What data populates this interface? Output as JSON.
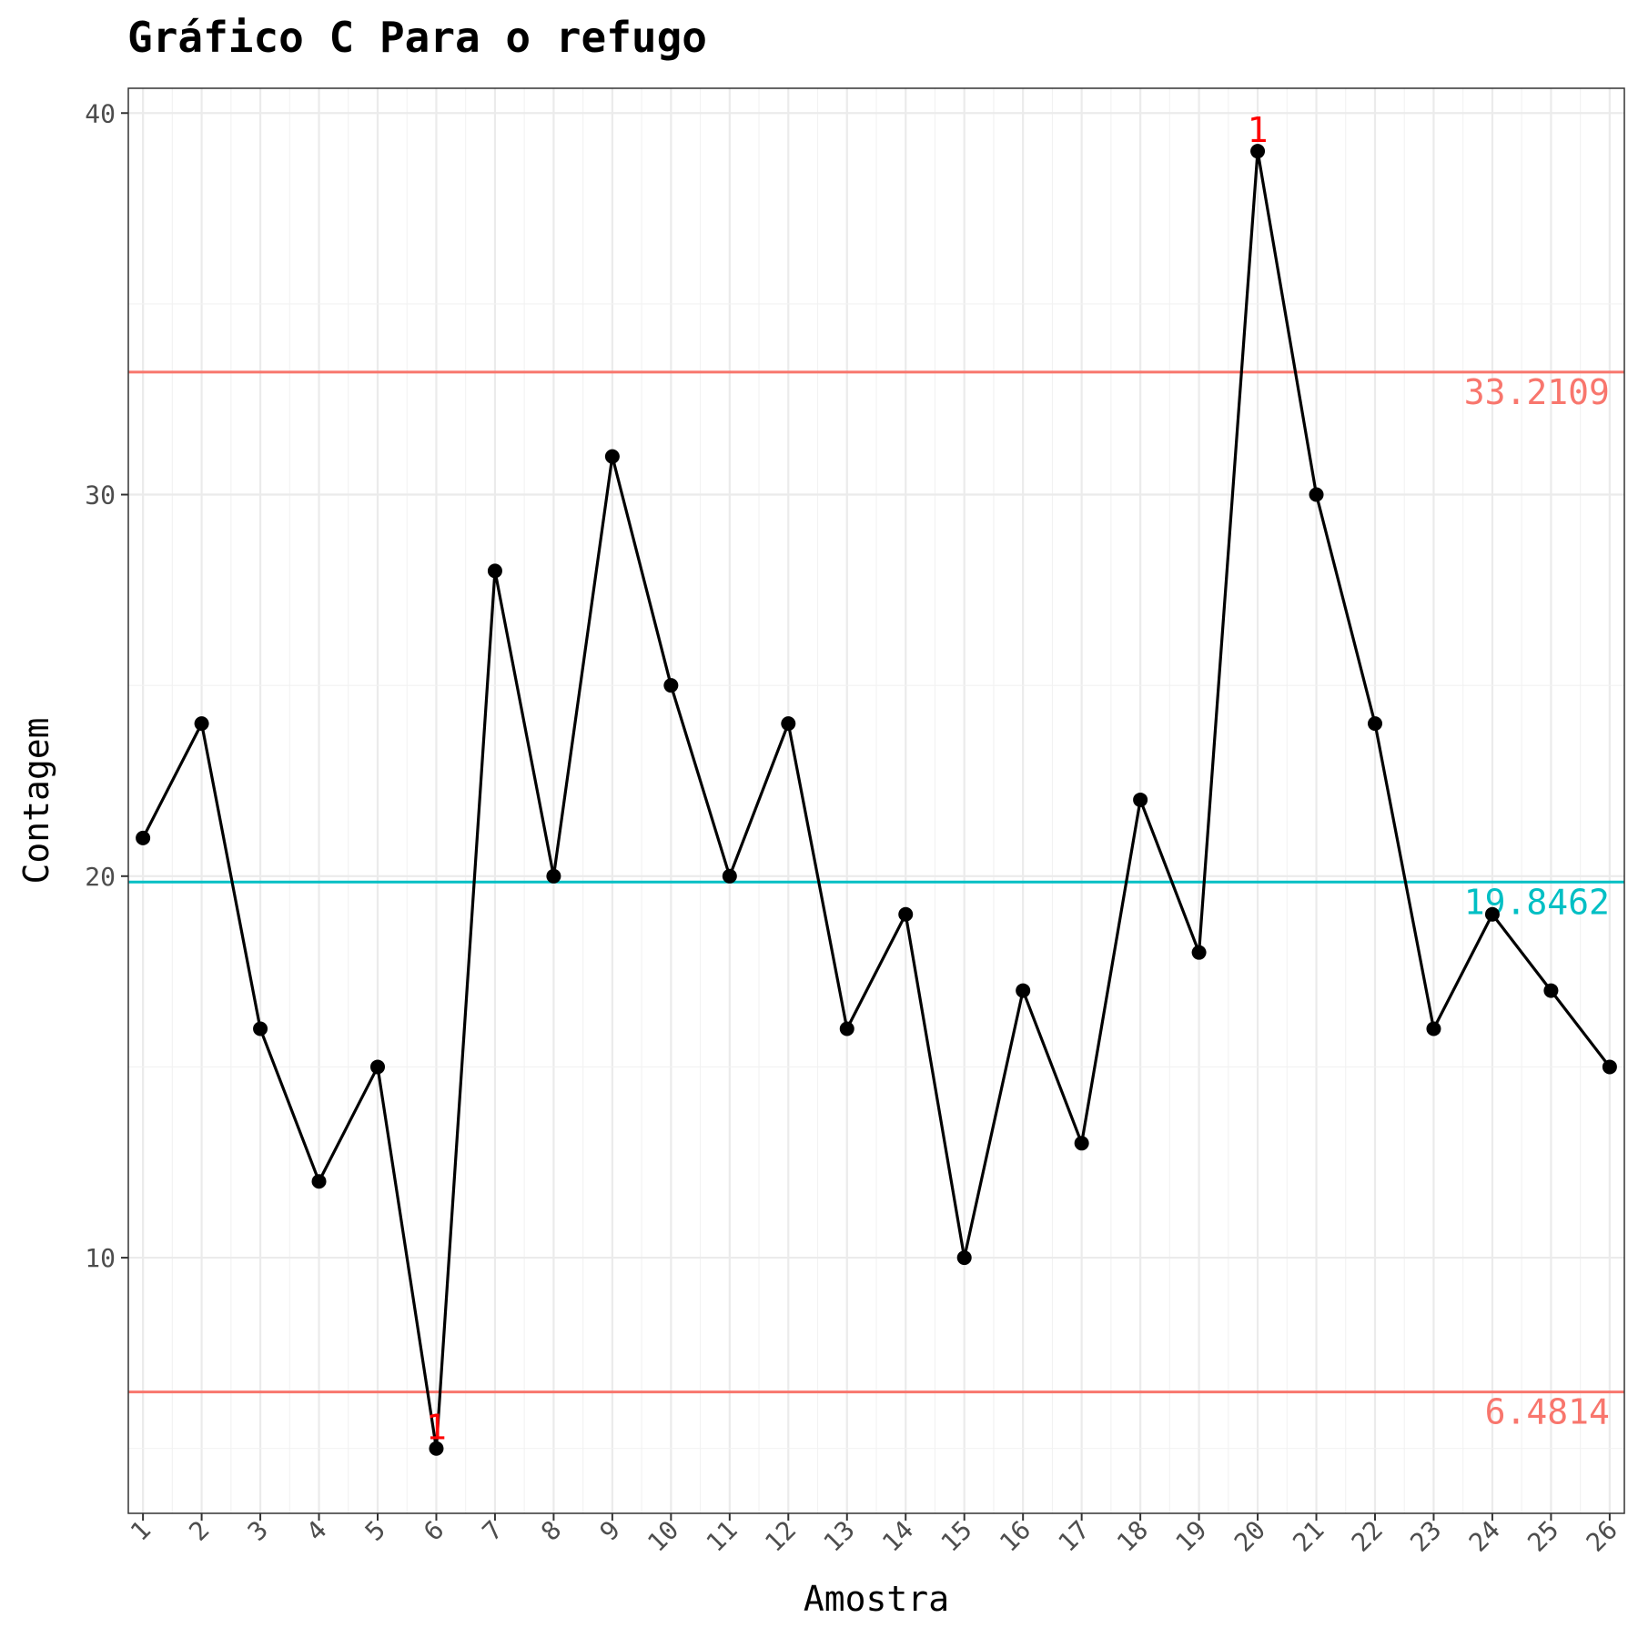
{
  "chart_data": {
    "type": "line",
    "title": "Gráfico C Para o refugo",
    "xlabel": "Amostra",
    "ylabel": "Contagem",
    "x": [
      1,
      2,
      3,
      4,
      5,
      6,
      7,
      8,
      9,
      10,
      11,
      12,
      13,
      14,
      15,
      16,
      17,
      18,
      19,
      20,
      21,
      22,
      23,
      24,
      25,
      26
    ],
    "values": [
      21,
      24,
      16,
      12,
      15,
      5,
      28,
      20,
      31,
      25,
      20,
      24,
      16,
      19,
      10,
      17,
      13,
      22,
      18,
      39,
      30,
      24,
      16,
      19,
      17,
      15
    ],
    "xlim": [
      0.75,
      26.25
    ],
    "ylim": [
      3.3,
      40.65
    ],
    "y_ticks": [
      10,
      20,
      30,
      40
    ],
    "grid": true,
    "control_limits": [
      {
        "name": "UCL",
        "value": 33.2109,
        "label": "33.2109",
        "color": "#f8766d"
      },
      {
        "name": "CL",
        "value": 19.8462,
        "label": "19.8462",
        "color": "#00bfc4"
      },
      {
        "name": "LCL",
        "value": 6.4814,
        "label": "6.4814",
        "color": "#f8766d"
      }
    ],
    "out_of_control": [
      {
        "x": 6,
        "label": "1"
      },
      {
        "x": 20,
        "label": "1"
      }
    ],
    "line_color": "#000000",
    "flag_color": "#ff0000"
  }
}
